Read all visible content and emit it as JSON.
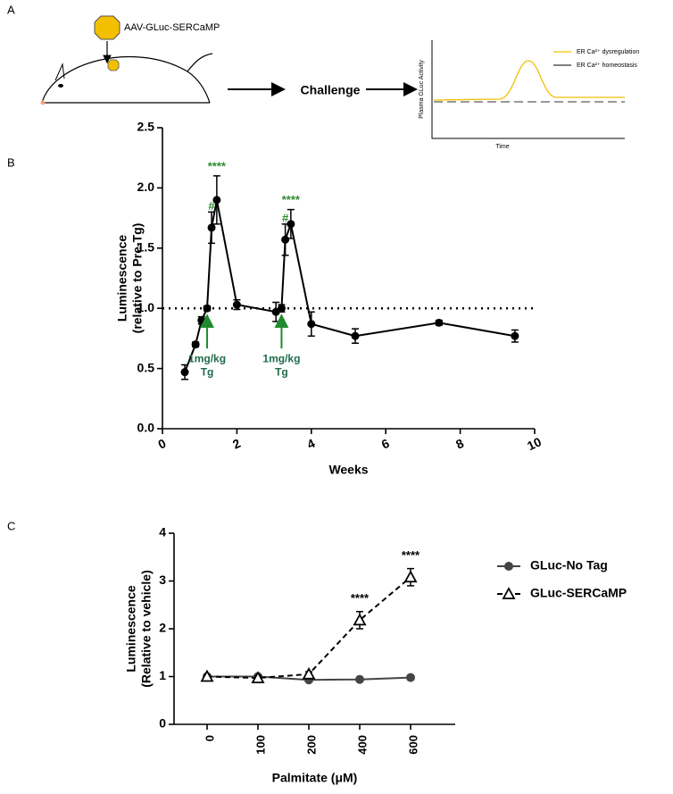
{
  "diagram": {
    "panel": "A",
    "construct": "AAV-GLuc-SERCaMP",
    "step": "Challenge",
    "schematic": {
      "ylabel": "Plasma GLuc Activity",
      "xlabel": "Time",
      "legend": [
        "ER Ca²⁺ dysregulation",
        "ER Ca²⁺ homeostasis"
      ]
    }
  },
  "chart_data": [
    {
      "type": "line",
      "panel": "B",
      "xlabel": "Weeks",
      "ylabel": [
        "Luminescence",
        "(relative to Pre-Tg)"
      ],
      "x": [
        0.6,
        0.89,
        1.05,
        1.2,
        1.32,
        1.46,
        2.0,
        3.05,
        3.2,
        3.3,
        3.45,
        4.0,
        5.18,
        7.43,
        9.47
      ],
      "values": [
        0.47,
        0.7,
        0.9,
        1.0,
        1.67,
        1.9,
        1.03,
        0.97,
        1.0,
        1.57,
        1.7,
        0.87,
        0.77,
        0.88,
        0.77
      ],
      "errors": [
        0.06,
        0.02,
        0.03,
        0.02,
        0.13,
        0.2,
        0.04,
        0.08,
        0.03,
        0.13,
        0.12,
        0.1,
        0.06,
        0.02,
        0.05
      ],
      "color": "#000000",
      "xlim": [
        0,
        10
      ],
      "xticks": [
        0,
        2,
        4,
        6,
        8,
        10
      ],
      "ylim": [
        0,
        2.5
      ],
      "yticks": [
        {
          "value": 0,
          "label": "0.0"
        },
        0.5,
        {
          "value": 1,
          "label": "1.0"
        },
        1.5,
        {
          "value": 2,
          "label": "2.0"
        },
        2.5
      ],
      "reference_line": 1,
      "annotations": [
        {
          "text": "****",
          "x": 1.46,
          "color": "#2e8b2e"
        },
        {
          "text": "#",
          "x": 1.32,
          "color": "#2e8b2e"
        },
        {
          "text": "****",
          "x": 3.45,
          "color": "#2e8b2e"
        },
        {
          "text": "#",
          "x": 3.3,
          "color": "#2e8b2e"
        }
      ],
      "arrows": [
        {
          "text": [
            "1mg/kg",
            "Tg"
          ],
          "x": 1.2,
          "color": "#1f6b4a"
        },
        {
          "text": [
            "1mg/kg",
            "Tg"
          ],
          "x": 3.2,
          "color": "#1f6b4a"
        }
      ]
    },
    {
      "type": "line",
      "panel": "C",
      "xlabel": "Palmitate (μM)",
      "ylabel": [
        "Luminescence",
        "(Relative to vehicle)"
      ],
      "categories": [
        "0",
        "100",
        "200",
        "400",
        "600"
      ],
      "ylim": [
        0,
        4
      ],
      "yticks": [
        0,
        1,
        2,
        3,
        4
      ],
      "series": [
        {
          "name": "GLuc-No Tag",
          "color": "#444444",
          "marker": "circle",
          "dash": false,
          "values": [
            1.0,
            1.0,
            0.93,
            0.94,
            0.98
          ],
          "errors": [
            0.03,
            0.03,
            0.02,
            0.02,
            0.02
          ]
        },
        {
          "name": "GLuc-SERCaMP",
          "color": "#000000",
          "marker": "triangle",
          "dash": true,
          "values": [
            1.0,
            0.97,
            1.05,
            2.18,
            3.08
          ],
          "errors": [
            0.04,
            0.05,
            0.05,
            0.18,
            0.18
          ]
        }
      ],
      "annotations": [
        {
          "text": "****",
          "category": "400"
        },
        {
          "text": "****",
          "category": "600"
        }
      ]
    }
  ]
}
